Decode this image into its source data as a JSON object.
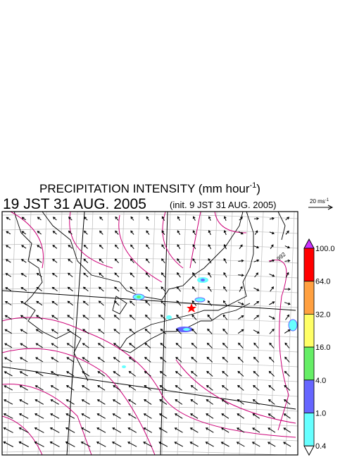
{
  "header": {
    "title_main": "PRECIPITATION INTENSITY (mm hour",
    "title_sup": "-1",
    "title_end": ")",
    "valid_time": "19 JST 31 AUG. 2005",
    "init_time": "(init. 9 JST 31 AUG. 2005)"
  },
  "wind_scale": {
    "label": "20 ms",
    "label_sup": "-1"
  },
  "map": {
    "contour_label": "992"
  },
  "colorbar": {
    "labels": [
      "100.0",
      "64.0",
      "32.0",
      "16.0",
      "4.0",
      "1.0",
      "0.4"
    ],
    "colors": [
      "#ff0000",
      "#ffa040",
      "#ffff66",
      "#66ee66",
      "#6666ff",
      "#66ffff"
    ],
    "over_color": "#cc33ff",
    "under_color": "#ffffff"
  }
}
